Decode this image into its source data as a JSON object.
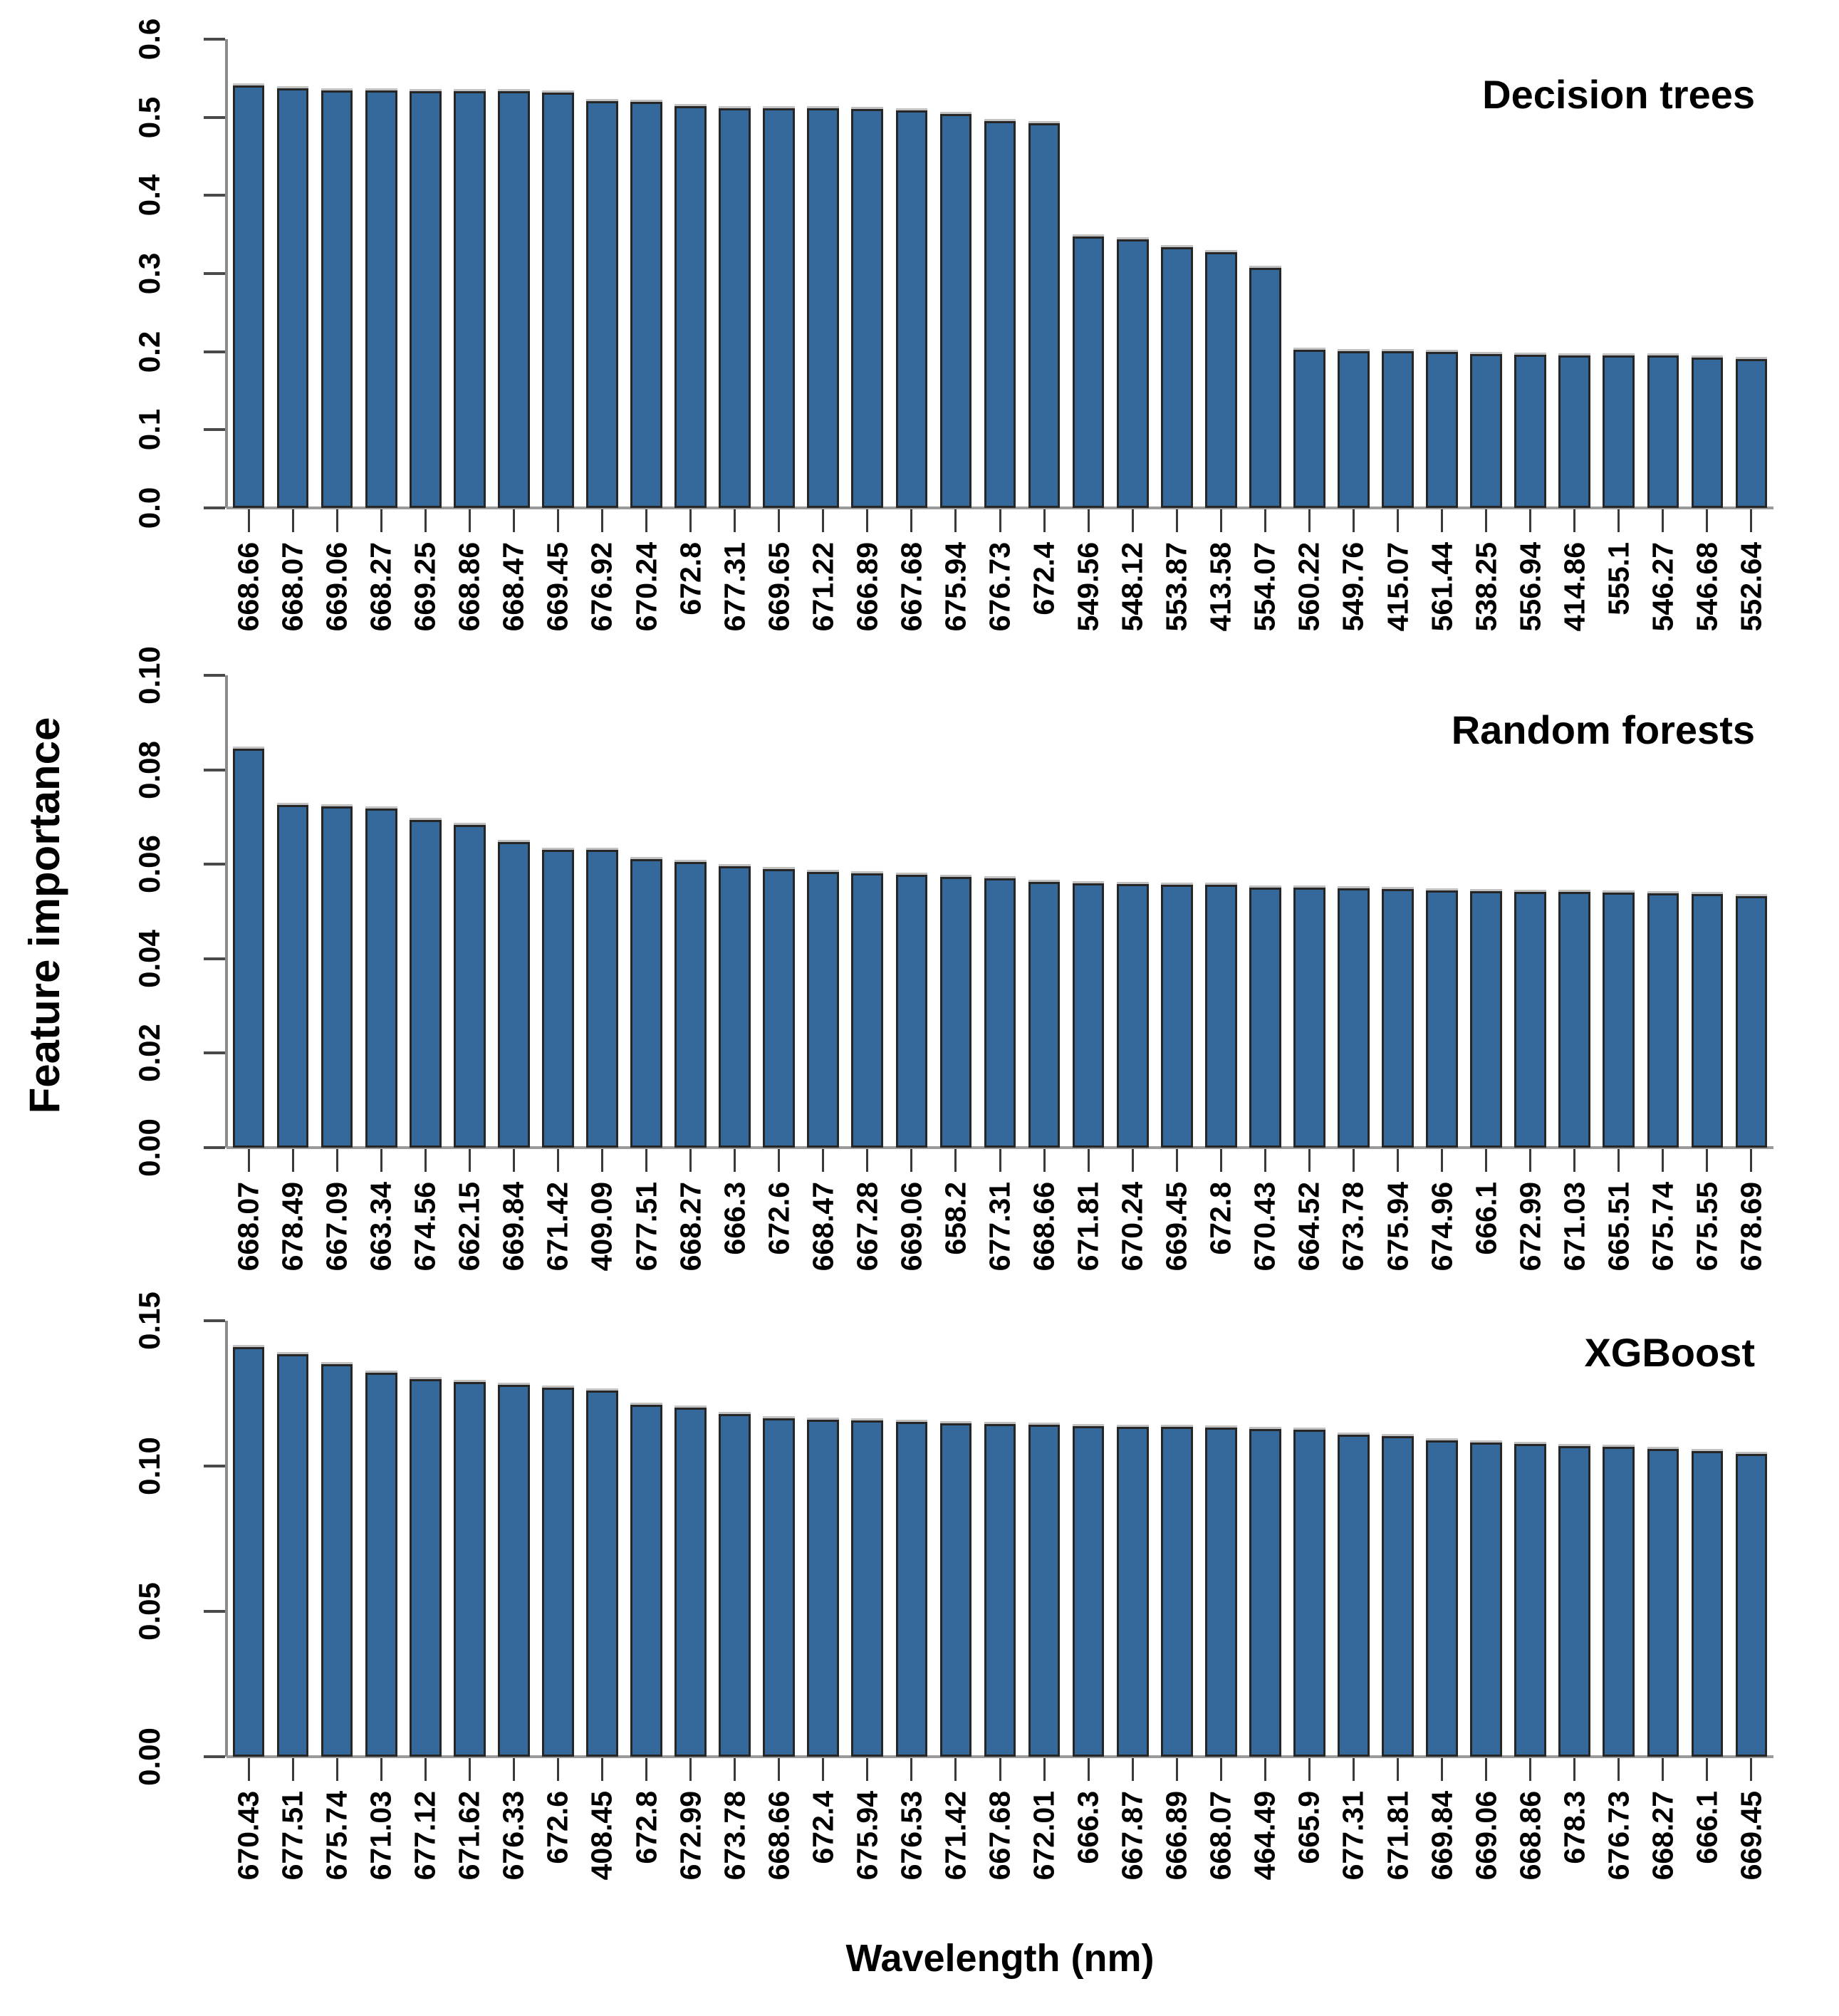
{
  "figure": {
    "ylabel": "Feature importance",
    "xlabel": "Wavelength (nm)",
    "bar_fill": "#35689B",
    "bar_stroke": "#262626",
    "text_color": "#000000",
    "axis_line_color": "#9a9a9a"
  },
  "chart_data": [
    {
      "type": "bar",
      "title": "Decision trees",
      "xlabel": "",
      "ylabel": "",
      "ylim": [
        0,
        0.6
      ],
      "grid": false,
      "legend_position": "none",
      "yticks": [
        0.0,
        0.1,
        0.2,
        0.3,
        0.4,
        0.5,
        0.6
      ],
      "ytick_labels": [
        "0.0",
        "0.1",
        "0.2",
        "0.3",
        "0.4",
        "0.5",
        "0.6"
      ],
      "categories": [
        "668.66",
        "668.07",
        "669.06",
        "668.27",
        "669.25",
        "668.86",
        "668.47",
        "669.45",
        "676.92",
        "670.24",
        "672.8",
        "677.31",
        "669.65",
        "671.22",
        "666.89",
        "667.68",
        "675.94",
        "676.73",
        "672.4",
        "549.56",
        "548.12",
        "553.87",
        "413.58",
        "554.07",
        "560.22",
        "549.76",
        "415.07",
        "561.44",
        "538.25",
        "556.94",
        "414.86",
        "555.1",
        "546.27",
        "546.68",
        "552.64"
      ],
      "values": [
        0.541,
        0.537,
        0.534,
        0.534,
        0.533,
        0.533,
        0.533,
        0.532,
        0.521,
        0.52,
        0.514,
        0.512,
        0.512,
        0.512,
        0.511,
        0.509,
        0.504,
        0.495,
        0.492,
        0.347,
        0.344,
        0.334,
        0.327,
        0.307,
        0.202,
        0.201,
        0.201,
        0.2,
        0.197,
        0.196,
        0.195,
        0.195,
        0.195,
        0.192,
        0.191
      ]
    },
    {
      "type": "bar",
      "title": "Random forests",
      "xlabel": "",
      "ylabel": "",
      "ylim": [
        0,
        0.1
      ],
      "grid": false,
      "legend_position": "none",
      "yticks": [
        0.0,
        0.02,
        0.04,
        0.06,
        0.08,
        0.1
      ],
      "ytick_labels": [
        "0.00",
        "0.02",
        "0.04",
        "0.06",
        "0.08",
        "0.10"
      ],
      "categories": [
        "668.07",
        "678.49",
        "667.09",
        "663.34",
        "674.56",
        "662.15",
        "669.84",
        "671.42",
        "409.09",
        "677.51",
        "668.27",
        "666.3",
        "672.6",
        "668.47",
        "667.28",
        "669.06",
        "658.2",
        "677.31",
        "668.66",
        "671.81",
        "670.24",
        "669.45",
        "672.8",
        "670.43",
        "664.52",
        "673.78",
        "675.94",
        "674.96",
        "666.1",
        "672.99",
        "671.03",
        "665.51",
        "675.74",
        "675.55",
        "678.69"
      ],
      "values": [
        0.0845,
        0.0725,
        0.0722,
        0.0718,
        0.0694,
        0.0683,
        0.0647,
        0.0631,
        0.063,
        0.0611,
        0.0605,
        0.0596,
        0.0589,
        0.0584,
        0.058,
        0.0578,
        0.0573,
        0.057,
        0.0563,
        0.056,
        0.0558,
        0.0557,
        0.0556,
        0.0551,
        0.055,
        0.0549,
        0.0548,
        0.0545,
        0.0543,
        0.0542,
        0.0541,
        0.054,
        0.0538,
        0.0537,
        0.0533
      ]
    },
    {
      "type": "bar",
      "title": "XGBoost",
      "xlabel": "",
      "ylabel": "",
      "ylim": [
        0,
        0.15
      ],
      "grid": false,
      "legend_position": "none",
      "yticks": [
        0.0,
        0.05,
        0.1,
        0.15
      ],
      "ytick_labels": [
        "0.00",
        "0.05",
        "0.10",
        "0.15"
      ],
      "categories": [
        "670.43",
        "677.51",
        "675.74",
        "671.03",
        "677.12",
        "671.62",
        "676.33",
        "672.6",
        "408.45",
        "672.8",
        "672.99",
        "673.78",
        "668.66",
        "672.4",
        "675.94",
        "676.53",
        "671.42",
        "667.68",
        "672.01",
        "666.3",
        "667.87",
        "666.89",
        "668.07",
        "464.49",
        "665.9",
        "677.31",
        "671.81",
        "669.84",
        "669.06",
        "668.86",
        "678.3",
        "676.73",
        "668.27",
        "666.1",
        "669.45"
      ],
      "values": [
        0.141,
        0.1385,
        0.135,
        0.132,
        0.13,
        0.129,
        0.128,
        0.127,
        0.126,
        0.121,
        0.12,
        0.118,
        0.1165,
        0.116,
        0.1158,
        0.1152,
        0.1148,
        0.1145,
        0.1142,
        0.1138,
        0.1136,
        0.1134,
        0.1132,
        0.1128,
        0.1125,
        0.1108,
        0.1102,
        0.1088,
        0.1082,
        0.1075,
        0.1068,
        0.1065,
        0.1058,
        0.1052,
        0.1042
      ]
    }
  ]
}
